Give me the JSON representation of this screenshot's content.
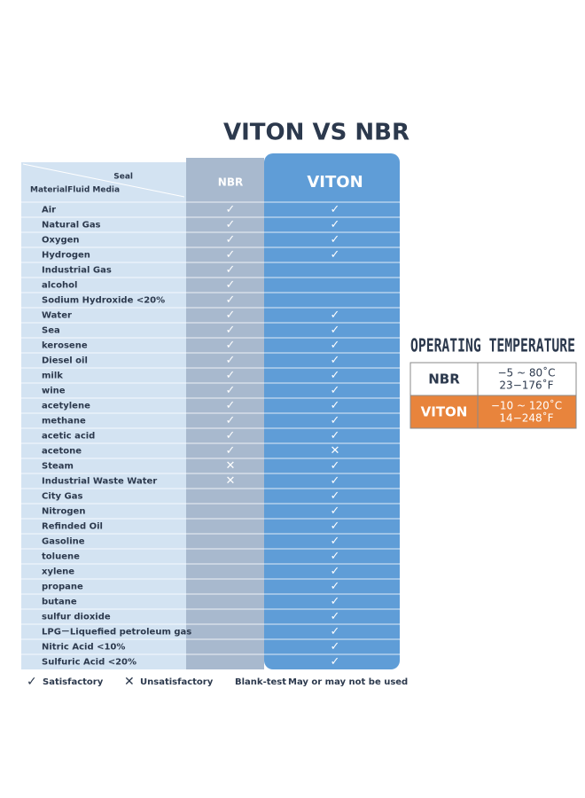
{
  "title": "VITON VS NBR",
  "table": {
    "corner": {
      "top": "Seal",
      "bottom": "MaterialFluid Media"
    },
    "columns": [
      "NBR",
      "VITON"
    ],
    "rows": [
      [
        "Air",
        "✓",
        "✓"
      ],
      [
        "Natural Gas",
        "✓",
        "✓"
      ],
      [
        "Oxygen",
        "✓",
        "✓"
      ],
      [
        "Hydrogen",
        "✓",
        "✓"
      ],
      [
        "Industrial Gas",
        "✓",
        null
      ],
      [
        "alcohol",
        "✓",
        null
      ],
      [
        "Sodium Hydroxide <20%",
        "✓",
        null
      ],
      [
        "Water",
        "✓",
        "✓"
      ],
      [
        "Sea",
        "✓",
        "✓"
      ],
      [
        "kerosene",
        "✓",
        "✓"
      ],
      [
        "Diesel oil",
        "✓",
        "✓"
      ],
      [
        "milk",
        "✓",
        "✓"
      ],
      [
        "wine",
        "✓",
        "✓"
      ],
      [
        "acetylene",
        "✓",
        "✓"
      ],
      [
        "methane",
        "✓",
        "✓"
      ],
      [
        "acetic acid",
        "✓",
        "✓"
      ],
      [
        "acetone",
        "✓",
        "✕"
      ],
      [
        "Steam",
        "✕",
        "✓"
      ],
      [
        "Industrial Waste Water",
        "✕",
        "✓"
      ],
      [
        "City Gas",
        null,
        "✓"
      ],
      [
        "Nitrogen",
        null,
        "✓"
      ],
      [
        "Refinded Oil",
        null,
        "✓"
      ],
      [
        "Gasoline",
        null,
        "✓"
      ],
      [
        "toluene",
        null,
        "✓"
      ],
      [
        "xylene",
        null,
        "✓"
      ],
      [
        "propane",
        null,
        "✓"
      ],
      [
        "butane",
        null,
        "✓"
      ],
      [
        "sulfur dioxide",
        null,
        "✓"
      ],
      [
        "LPG－Liquefied petroleum gas",
        null,
        "✓"
      ],
      [
        "Nitric Acid <10%",
        null,
        "✓"
      ],
      [
        "Sulfuric Acid <20%",
        null,
        "✓"
      ]
    ]
  },
  "legend": [
    {
      "symbol": "✓",
      "label": "Satisfactory"
    },
    {
      "symbol": "✕",
      "label": "Unsatisfactory"
    },
    {
      "symbol": "Blank-test",
      "label": "May or may not be used"
    }
  ],
  "temperature": {
    "title": "OPERATING TEMPERATURE",
    "rows": [
      {
        "material": "NBR",
        "celsius": "−5 ~ 80˚C",
        "fahrenheit": "23−176˚F"
      },
      {
        "material": "VITON",
        "celsius": "−10 ~ 120˚C",
        "fahrenheit": "14−248˚F"
      }
    ]
  }
}
